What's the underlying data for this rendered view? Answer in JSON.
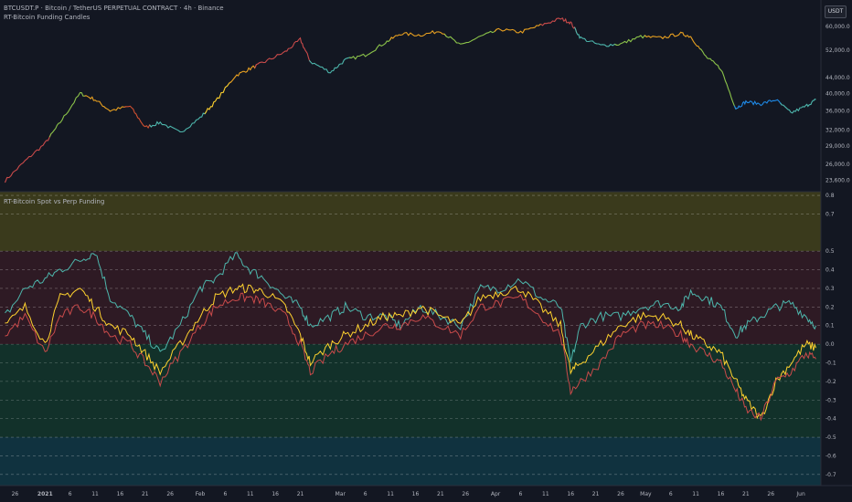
{
  "header": {
    "symbol_line": "BTCUSDT.P · Bitcoin / TetherUS PERPETUAL CONTRACT · 4h · Binance",
    "price_indicator": "RT-Bitcoin Funding Candles",
    "oscillator_title": "RT-Bitcoin Spot vs Perp Funding"
  },
  "currency_button": "USDT",
  "colors": {
    "background": "#131722",
    "teal": "#4db6ac",
    "yellow": "#ffd22e",
    "red": "#c94a4a",
    "zone_olive": "#3a3a1c",
    "zone_maroon": "#2e1a24",
    "zone_green": "#12312a",
    "zone_blue": "#10323f"
  },
  "chart_data": [
    {
      "type": "line",
      "panel": "price",
      "scale": "log",
      "y_ticks": [
        "60,000.0",
        "52,000.0",
        "44,000.0",
        "40,000.0",
        "36,000.0",
        "32,000.0",
        "29,000.0",
        "26,000.0",
        "23,600.0"
      ],
      "ylim": [
        22500,
        66000
      ],
      "x_dates": [
        "2020-12-24",
        "2020-12-28",
        "2021-01-01",
        "2021-01-04",
        "2021-01-08",
        "2021-01-11",
        "2021-01-14",
        "2021-01-18",
        "2021-01-21",
        "2021-01-24",
        "2021-01-28",
        "2021-02-01",
        "2021-02-04",
        "2021-02-08",
        "2021-02-11",
        "2021-02-14",
        "2021-02-18",
        "2021-02-21",
        "2021-02-23",
        "2021-02-27",
        "2021-03-02",
        "2021-03-06",
        "2021-03-10",
        "2021-03-13",
        "2021-03-17",
        "2021-03-21",
        "2021-03-25",
        "2021-03-29",
        "2021-04-02",
        "2021-04-06",
        "2021-04-10",
        "2021-04-14",
        "2021-04-16",
        "2021-04-18",
        "2021-04-22",
        "2021-04-26",
        "2021-04-30",
        "2021-05-04",
        "2021-05-08",
        "2021-05-10",
        "2021-05-13",
        "2021-05-16",
        "2021-05-19",
        "2021-05-21",
        "2021-05-24",
        "2021-05-27",
        "2021-05-30",
        "2021-06-02",
        "2021-06-04"
      ],
      "values": [
        23500,
        26500,
        29500,
        33500,
        40000,
        38500,
        36000,
        37000,
        32500,
        33500,
        31500,
        34500,
        38000,
        44500,
        46500,
        48500,
        51500,
        55500,
        48500,
        45500,
        49000,
        50500,
        54500,
        57500,
        57000,
        58500,
        53500,
        56500,
        59000,
        58000,
        60500,
        63000,
        61500,
        56000,
        53500,
        54000,
        56500,
        56000,
        57500,
        56500,
        50000,
        46500,
        36500,
        38000,
        37500,
        38500,
        35500,
        37000,
        38500
      ],
      "candle_color_bands": [
        {
          "from": "2020-12-24",
          "color": "#c94a4a"
        },
        {
          "from": "2021-01-02",
          "color": "#8bc34a"
        },
        {
          "from": "2021-01-09",
          "color": "#e8a020"
        },
        {
          "from": "2021-01-17",
          "color": "#d05030"
        },
        {
          "from": "2021-01-22",
          "color": "#4db6ac"
        },
        {
          "from": "2021-02-02",
          "color": "#ffd22e"
        },
        {
          "from": "2021-02-07",
          "color": "#e8a020"
        },
        {
          "from": "2021-02-12",
          "color": "#c94a4a"
        },
        {
          "from": "2021-02-23",
          "color": "#4db6ac"
        },
        {
          "from": "2021-03-03",
          "color": "#8bc34a"
        },
        {
          "from": "2021-03-11",
          "color": "#e8a020"
        },
        {
          "from": "2021-03-22",
          "color": "#8bc34a"
        },
        {
          "from": "2021-04-01",
          "color": "#e8a020"
        },
        {
          "from": "2021-04-10",
          "color": "#c94a4a"
        },
        {
          "from": "2021-04-17",
          "color": "#4db6ac"
        },
        {
          "from": "2021-04-25",
          "color": "#8bc34a"
        },
        {
          "from": "2021-05-01",
          "color": "#e8a020"
        },
        {
          "from": "2021-05-12",
          "color": "#8bc34a"
        },
        {
          "from": "2021-05-19",
          "color": "#1e88e5"
        },
        {
          "from": "2021-05-28",
          "color": "#4db6ac"
        }
      ]
    },
    {
      "type": "line",
      "panel": "oscillator",
      "y_ticks": [
        "0.8",
        "0.7",
        "0.5",
        "0.4",
        "0.3",
        "0.2",
        "0.1",
        "0.0",
        "-0.1",
        "-0.2",
        "-0.3",
        "-0.4",
        "-0.5",
        "-0.6",
        "-0.7"
      ],
      "ylim": [
        -0.76,
        0.82
      ],
      "zones": [
        {
          "from": 0.5,
          "to": 0.82,
          "color": "#3a3a1c"
        },
        {
          "from": 0.0,
          "to": 0.5,
          "color": "#2e1a24"
        },
        {
          "from": -0.5,
          "to": 0.0,
          "color": "#12312a"
        },
        {
          "from": -0.76,
          "to": -0.5,
          "color": "#10323f"
        }
      ],
      "x": [
        "2020-12-24",
        "2020-12-28",
        "2021-01-01",
        "2021-01-04",
        "2021-01-08",
        "2021-01-11",
        "2021-01-14",
        "2021-01-18",
        "2021-01-21",
        "2021-01-24",
        "2021-01-28",
        "2021-02-01",
        "2021-02-04",
        "2021-02-08",
        "2021-02-11",
        "2021-02-14",
        "2021-02-18",
        "2021-02-21",
        "2021-02-23",
        "2021-02-27",
        "2021-03-02",
        "2021-03-06",
        "2021-03-10",
        "2021-03-13",
        "2021-03-17",
        "2021-03-21",
        "2021-03-25",
        "2021-03-29",
        "2021-04-02",
        "2021-04-06",
        "2021-04-10",
        "2021-04-14",
        "2021-04-16",
        "2021-04-18",
        "2021-04-22",
        "2021-04-26",
        "2021-04-30",
        "2021-05-04",
        "2021-05-08",
        "2021-05-10",
        "2021-05-13",
        "2021-05-16",
        "2021-05-19",
        "2021-05-21",
        "2021-05-24",
        "2021-05-27",
        "2021-05-30",
        "2021-06-02",
        "2021-06-04"
      ],
      "series": [
        {
          "color": "#4db6ac",
          "values": [
            0.15,
            0.3,
            0.35,
            0.4,
            0.45,
            0.5,
            0.25,
            0.15,
            0.05,
            -0.05,
            0.1,
            0.3,
            0.35,
            0.48,
            0.4,
            0.35,
            0.25,
            0.2,
            0.1,
            0.15,
            0.2,
            0.15,
            0.15,
            0.1,
            0.2,
            0.15,
            0.1,
            0.3,
            0.3,
            0.35,
            0.25,
            0.2,
            -0.1,
            0.1,
            0.15,
            0.15,
            0.2,
            0.22,
            0.2,
            0.28,
            0.25,
            0.2,
            0.05,
            0.1,
            0.15,
            0.2,
            0.22,
            0.15,
            0.1
          ]
        },
        {
          "color": "#ffd22e",
          "values": [
            0.1,
            0.2,
            0.0,
            0.25,
            0.3,
            0.2,
            0.1,
            0.05,
            -0.05,
            -0.15,
            0.0,
            0.15,
            0.25,
            0.3,
            0.3,
            0.28,
            0.2,
            0.05,
            -0.1,
            0.0,
            0.05,
            0.1,
            0.15,
            0.15,
            0.2,
            0.15,
            0.1,
            0.25,
            0.28,
            0.3,
            0.2,
            0.1,
            -0.15,
            -0.1,
            0.0,
            0.1,
            0.15,
            0.15,
            0.1,
            0.05,
            0.0,
            -0.05,
            -0.2,
            -0.3,
            -0.4,
            -0.2,
            -0.1,
            0.0,
            -0.02
          ]
        },
        {
          "color": "#c94a4a",
          "values": [
            0.05,
            0.15,
            -0.05,
            0.15,
            0.2,
            0.15,
            0.05,
            0.0,
            -0.1,
            -0.2,
            -0.05,
            0.1,
            0.2,
            0.25,
            0.25,
            0.22,
            0.15,
            0.0,
            -0.15,
            -0.05,
            0.0,
            0.05,
            0.1,
            0.1,
            0.15,
            0.1,
            0.05,
            0.2,
            0.22,
            0.25,
            0.15,
            0.05,
            -0.25,
            -0.2,
            -0.1,
            0.05,
            0.1,
            0.1,
            0.05,
            0.0,
            -0.05,
            -0.1,
            -0.25,
            -0.35,
            -0.4,
            -0.2,
            -0.15,
            -0.05,
            -0.08
          ]
        }
      ],
      "x_tick_labels": [
        "26",
        "2021",
        "6",
        "11",
        "16",
        "21",
        "26",
        "Feb",
        "6",
        "11",
        "16",
        "21",
        "Mar",
        "6",
        "11",
        "16",
        "21",
        "26",
        "Apr",
        "6",
        "11",
        "16",
        "21",
        "26",
        "May",
        "6",
        "11",
        "16",
        "21",
        "26",
        "Jun"
      ],
      "x_tick_dates": [
        "2020-12-26",
        "2021-01-01",
        "2021-01-06",
        "2021-01-11",
        "2021-01-16",
        "2021-01-21",
        "2021-01-26",
        "2021-02-01",
        "2021-02-06",
        "2021-02-11",
        "2021-02-16",
        "2021-02-21",
        "2021-03-01",
        "2021-03-06",
        "2021-03-11",
        "2021-03-16",
        "2021-03-21",
        "2021-03-26",
        "2021-04-01",
        "2021-04-06",
        "2021-04-11",
        "2021-04-16",
        "2021-04-21",
        "2021-04-26",
        "2021-05-01",
        "2021-05-06",
        "2021-05-11",
        "2021-05-16",
        "2021-05-21",
        "2021-05-26",
        "2021-06-01"
      ]
    }
  ]
}
